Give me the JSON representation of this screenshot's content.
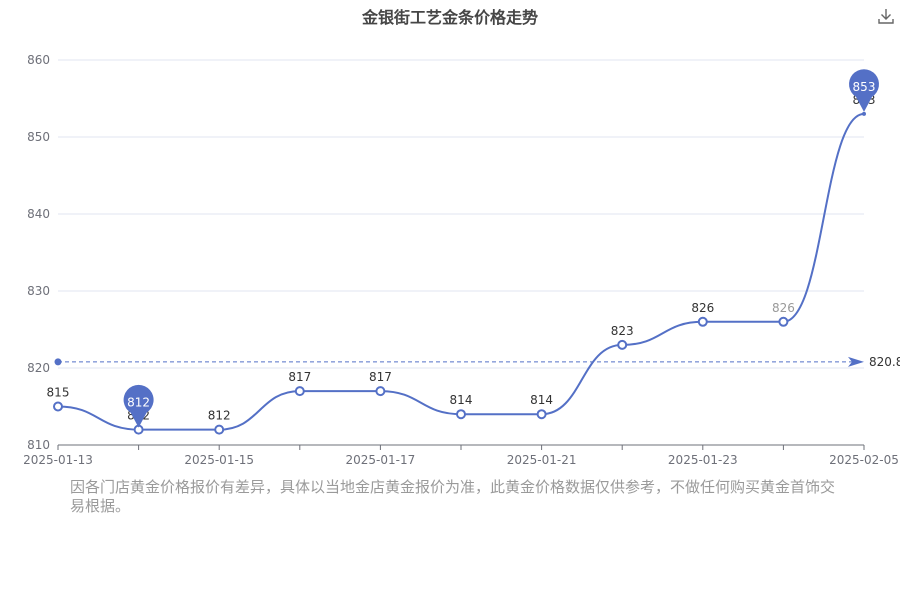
{
  "chart_data": {
    "type": "line",
    "title": "金银街工艺金条价格走势",
    "x": [
      "2025-01-13",
      "2025-01-14",
      "2025-01-15",
      "2025-01-16",
      "2025-01-17",
      "2025-01-20",
      "2025-01-21",
      "2025-01-22",
      "2025-01-23",
      "2025-01-24",
      "2025-02-05"
    ],
    "x_tick_labels": [
      "2025-01-13",
      "2025-01-15",
      "2025-01-17",
      "2025-01-21",
      "2025-01-23",
      "2025-02-05"
    ],
    "series": [
      {
        "values": [
          815,
          812,
          812,
          817,
          817,
          814,
          814,
          823,
          826,
          826,
          853
        ]
      }
    ],
    "ylim": [
      810,
      860
    ],
    "y_ticks": [
      810,
      820,
      830,
      840,
      850,
      860
    ],
    "average_line": {
      "value": 820.8,
      "label": "820.8"
    },
    "max_marker": {
      "label": "853",
      "value": 853
    },
    "min_marker": {
      "label": "812",
      "value": 812
    },
    "smooth": true,
    "grid": true,
    "colors": {
      "line": "#5470c6",
      "grid": "#e0e6f1",
      "axis": "#6e7079"
    }
  },
  "toolbar": {
    "download_icon": "download-icon"
  },
  "footnote": "因各门店黄金价格报价有差异，具体以当地金店黄金报价为准，此黄金价格数据仅供参考，不做任何购买黄金首饰交易根据。"
}
